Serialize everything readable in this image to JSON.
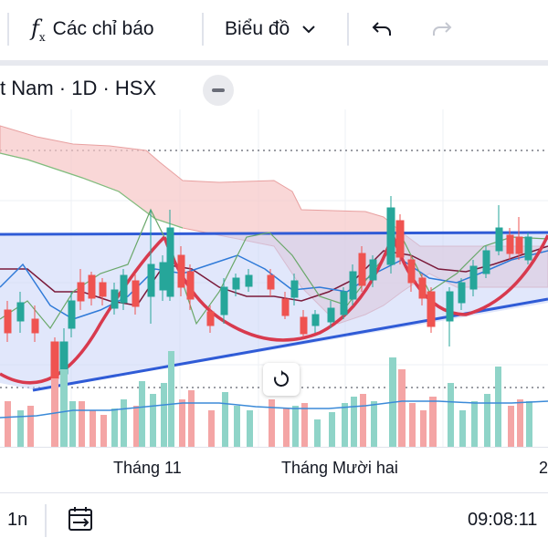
{
  "toolbar": {
    "indicators_label": "Các chỉ báo",
    "chart_type_label": "Biểu đồ",
    "undo_icon": "undo-icon",
    "redo_icon": "redo-icon",
    "fx_icon": "function-fx-icon"
  },
  "legend": {
    "symbol": "t Nam · 1D · HSX"
  },
  "time_axis": {
    "ticks": [
      "Tháng 11",
      "Tháng Mười hai",
      "2"
    ]
  },
  "bottom_bar": {
    "interval": "1n",
    "calendar_icon": "calendar-goto-icon",
    "clock": "09:08:11"
  },
  "colors": {
    "up": "#26a69a",
    "down": "#ef5350",
    "trendline": "#2f5bd6",
    "cup_curve": "#d83a4e",
    "cloud": "#f7c6c6",
    "channel_fill": "#c9d3f7"
  },
  "chart_data": {
    "type": "candlestick",
    "volume_bars": true,
    "overlays": [
      "ichimoku-cloud",
      "horizontal-resistance",
      "ascending-trendline",
      "cup-curves"
    ]
  }
}
